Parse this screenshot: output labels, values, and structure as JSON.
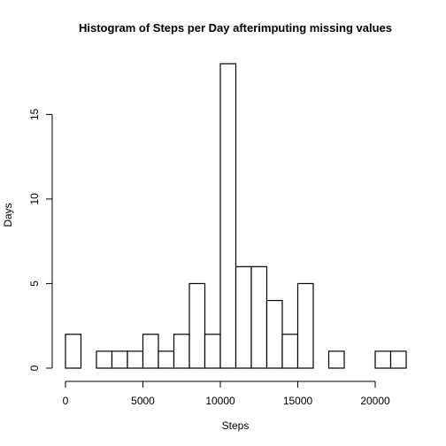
{
  "chart_data": {
    "type": "bar",
    "title": "Histogram of Steps per Day afterimputing missing values",
    "xlabel": "Steps",
    "ylabel": "Days",
    "bin_width": 1000,
    "bins": [
      {
        "start": 0,
        "end": 1000,
        "count": 2
      },
      {
        "start": 1000,
        "end": 2000,
        "count": 0
      },
      {
        "start": 2000,
        "end": 3000,
        "count": 1
      },
      {
        "start": 3000,
        "end": 4000,
        "count": 1
      },
      {
        "start": 4000,
        "end": 5000,
        "count": 1
      },
      {
        "start": 5000,
        "end": 6000,
        "count": 2
      },
      {
        "start": 6000,
        "end": 7000,
        "count": 1
      },
      {
        "start": 7000,
        "end": 8000,
        "count": 2
      },
      {
        "start": 8000,
        "end": 9000,
        "count": 5
      },
      {
        "start": 9000,
        "end": 10000,
        "count": 2
      },
      {
        "start": 10000,
        "end": 11000,
        "count": 18
      },
      {
        "start": 11000,
        "end": 12000,
        "count": 6
      },
      {
        "start": 12000,
        "end": 13000,
        "count": 6
      },
      {
        "start": 13000,
        "end": 14000,
        "count": 4
      },
      {
        "start": 14000,
        "end": 15000,
        "count": 2
      },
      {
        "start": 15000,
        "end": 16000,
        "count": 5
      },
      {
        "start": 16000,
        "end": 17000,
        "count": 0
      },
      {
        "start": 17000,
        "end": 18000,
        "count": 1
      },
      {
        "start": 18000,
        "end": 19000,
        "count": 0
      },
      {
        "start": 19000,
        "end": 20000,
        "count": 0
      },
      {
        "start": 20000,
        "end": 21000,
        "count": 1
      },
      {
        "start": 21000,
        "end": 22000,
        "count": 1
      }
    ],
    "xlim": [
      0,
      22000
    ],
    "ylim": [
      0,
      18
    ],
    "x_ticks": [
      0,
      5000,
      10000,
      15000,
      20000
    ],
    "x_tick_labels": [
      "0",
      "5000",
      "10000",
      "15000",
      "20000"
    ],
    "y_ticks": [
      0,
      5,
      10,
      15
    ],
    "y_tick_labels": [
      "0",
      "5",
      "10",
      "15"
    ],
    "grid": false,
    "legend": "none",
    "colors": {
      "bar_fill": "#ffffff",
      "bar_stroke": "#000000",
      "background": "#ffffff"
    }
  }
}
